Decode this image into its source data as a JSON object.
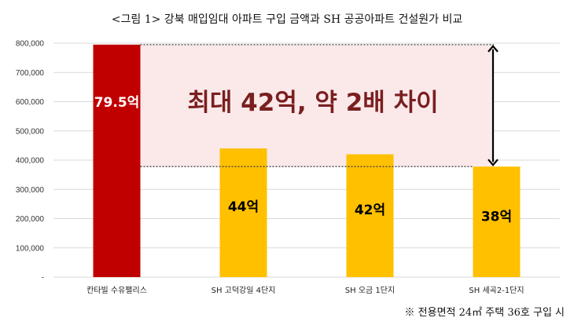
{
  "chart_data": {
    "type": "bar",
    "title": "<그림 1> 강북 매입임대 아파트 구입 금액과 SH 공공아파트 건설원가 비교",
    "categories": [
      "칸타빌 수유팰리스",
      "SH 고덕강일 4단지",
      "SH 오금 1단지",
      "SH 세곡2-1단지"
    ],
    "values": [
      795000,
      440000,
      420000,
      378000
    ],
    "value_labels": [
      "79.5억",
      "44억",
      "42억",
      "38억"
    ],
    "bar_colors": [
      "#c00000",
      "#ffc000",
      "#ffc000",
      "#ffc000"
    ],
    "label_colors": [
      "#ffffff",
      "#000000",
      "#000000",
      "#000000"
    ],
    "ylim": [
      0,
      800000
    ],
    "yticks": [
      0,
      100000,
      200000,
      300000,
      400000,
      500000,
      600000,
      700000,
      800000
    ],
    "ytick_labels": [
      "-",
      "100,000",
      "200,000",
      "300,000",
      "400,000",
      "500,000",
      "600,000",
      "700,000",
      "800,000"
    ],
    "grid": true,
    "xlabel": "",
    "ylabel": "",
    "annotation": {
      "text": "최대 42억, 약 2배 차이",
      "from_value": 795000,
      "to_value": 378000,
      "fill_color": "#fbe9ea"
    },
    "footnote": "※ 전용면적 24㎡ 주택 36호 구입 시"
  }
}
